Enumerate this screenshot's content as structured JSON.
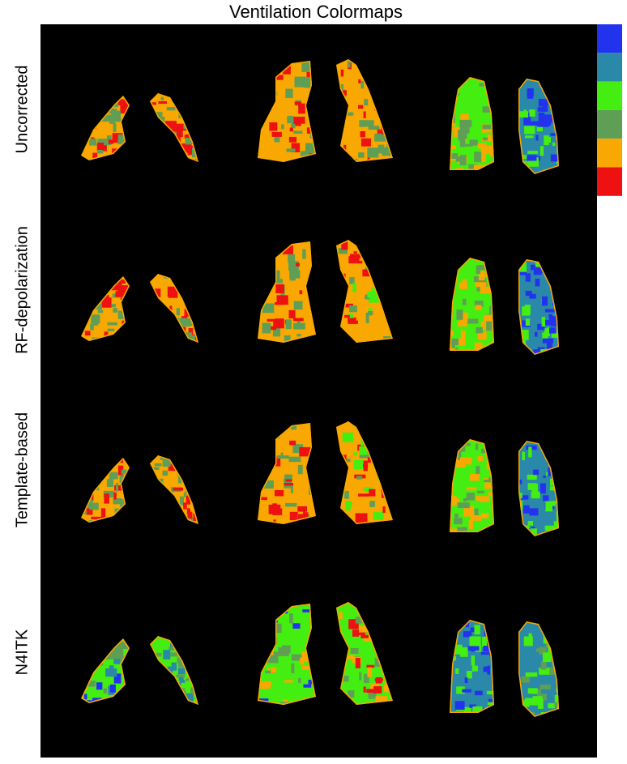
{
  "title": "Ventilation Colormaps",
  "rows": [
    "Uncorrected",
    "RF-depolarization",
    "Template-based",
    "N4ITK"
  ],
  "colorbar": {
    "colors": [
      "#2233ee",
      "#2a88a8",
      "#44ee11",
      "#5e9e55",
      "#f8a800",
      "#ee1111"
    ]
  }
}
